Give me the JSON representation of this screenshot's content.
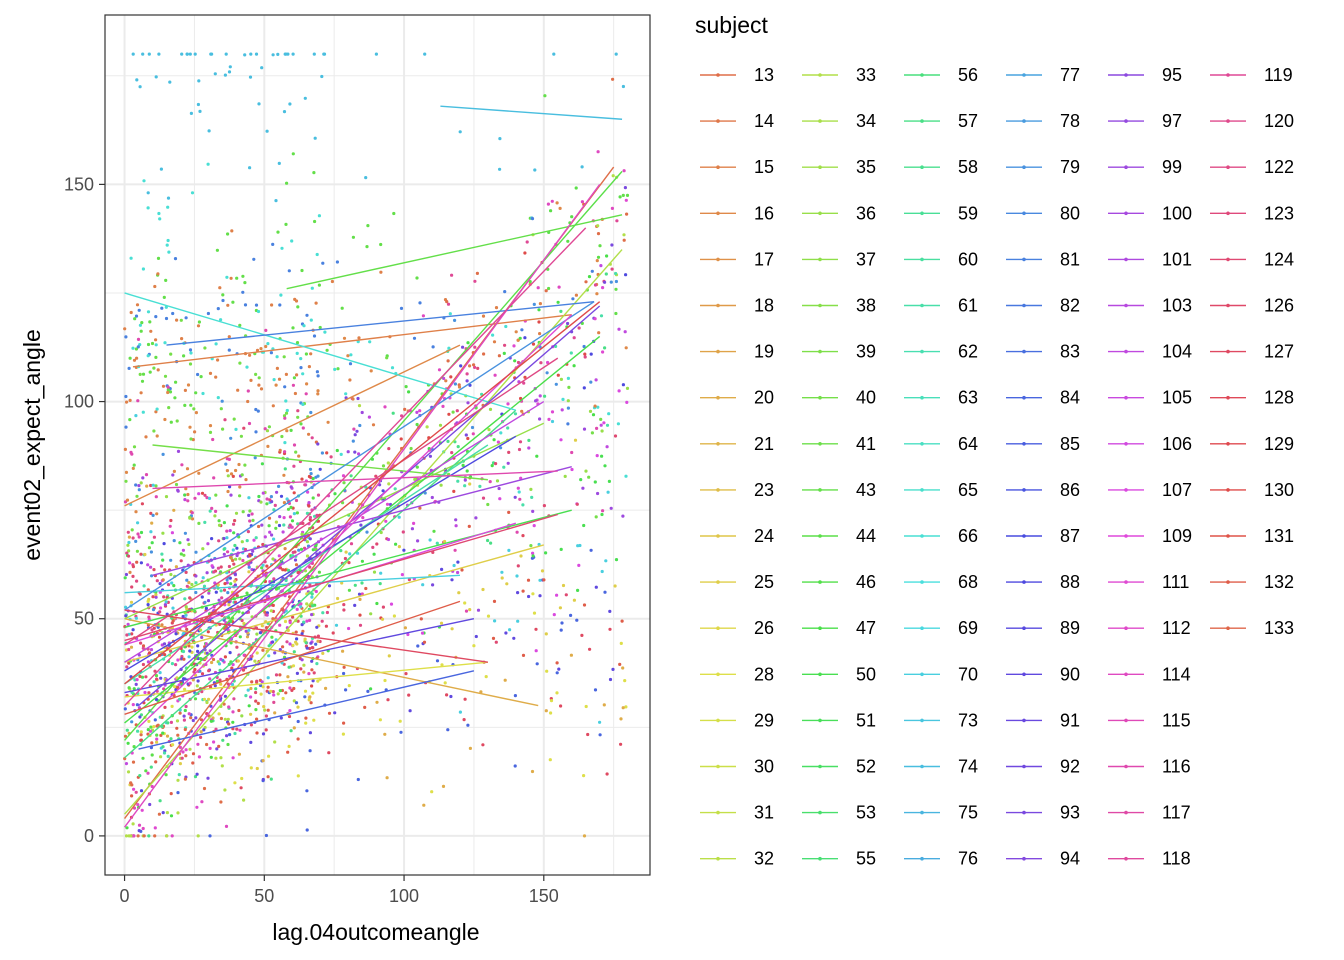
{
  "chart_data": {
    "type": "scatter",
    "title": "",
    "xlabel": "lag.04outcomeangle",
    "ylabel": "event02_expect_angle",
    "xlim": [
      -7,
      188
    ],
    "ylim": [
      -9,
      189
    ],
    "x_ticks": [
      0,
      50,
      100,
      150
    ],
    "y_ticks": [
      0,
      50,
      100,
      150
    ],
    "grid": true,
    "legend": {
      "title": "subject",
      "placement": "right",
      "entries": [
        "13",
        "14",
        "15",
        "16",
        "17",
        "18",
        "19",
        "20",
        "21",
        "23",
        "24",
        "25",
        "26",
        "28",
        "29",
        "30",
        "31",
        "32",
        "33",
        "34",
        "35",
        "36",
        "37",
        "38",
        "39",
        "40",
        "41",
        "43",
        "44",
        "46",
        "47",
        "50",
        "51",
        "52",
        "53",
        "55",
        "56",
        "57",
        "58",
        "59",
        "60",
        "61",
        "62",
        "63",
        "64",
        "65",
        "66",
        "68",
        "69",
        "70",
        "73",
        "74",
        "75",
        "76",
        "77",
        "78",
        "79",
        "80",
        "81",
        "82",
        "83",
        "84",
        "85",
        "86",
        "87",
        "88",
        "89",
        "90",
        "91",
        "92",
        "93",
        "94",
        "95",
        "97",
        "99",
        "100",
        "101",
        "103",
        "104",
        "105",
        "106",
        "107",
        "109",
        "111",
        "112",
        "114",
        "115",
        "116",
        "117",
        "118",
        "119",
        "120",
        "122",
        "123",
        "124",
        "126",
        "127",
        "128",
        "129",
        "130",
        "131",
        "132",
        "133"
      ]
    },
    "trend_lines": [
      {
        "subject": "13",
        "x": [
          0,
          175
        ],
        "y": [
          4,
          154
        ]
      },
      {
        "subject": "15",
        "x": [
          3,
          160
        ],
        "y": [
          108,
          120
        ]
      },
      {
        "subject": "16",
        "x": [
          0,
          120
        ],
        "y": [
          76,
          113
        ]
      },
      {
        "subject": "20",
        "x": [
          0,
          148
        ],
        "y": [
          50,
          30
        ]
      },
      {
        "subject": "25",
        "x": [
          0,
          150
        ],
        "y": [
          40,
          67
        ]
      },
      {
        "subject": "28",
        "x": [
          0,
          130
        ],
        "y": [
          32,
          40
        ]
      },
      {
        "subject": "33",
        "x": [
          0,
          178
        ],
        "y": [
          5,
          135
        ]
      },
      {
        "subject": "36",
        "x": [
          0,
          150
        ],
        "y": [
          50,
          95
        ]
      },
      {
        "subject": "40",
        "x": [
          10,
          130
        ],
        "y": [
          90,
          82
        ]
      },
      {
        "subject": "43",
        "x": [
          58,
          178
        ],
        "y": [
          126,
          143
        ]
      },
      {
        "subject": "44",
        "x": [
          0,
          178
        ],
        "y": [
          22,
          153
        ]
      },
      {
        "subject": "47",
        "x": [
          0,
          170
        ],
        "y": [
          26,
          115
        ]
      },
      {
        "subject": "50",
        "x": [
          0,
          160
        ],
        "y": [
          48,
          75
        ]
      },
      {
        "subject": "57",
        "x": [
          0,
          140
        ],
        "y": [
          18,
          98
        ]
      },
      {
        "subject": "61",
        "x": [
          0,
          130
        ],
        "y": [
          35,
          90
        ]
      },
      {
        "subject": "66",
        "x": [
          0,
          140
        ],
        "y": [
          125,
          98
        ]
      },
      {
        "subject": "70",
        "x": [
          0,
          120
        ],
        "y": [
          56,
          60
        ]
      },
      {
        "subject": "74",
        "x": [
          113,
          178
        ],
        "y": [
          168,
          165
        ]
      },
      {
        "subject": "79",
        "x": [
          0,
          168
        ],
        "y": [
          52,
          123
        ]
      },
      {
        "subject": "81",
        "x": [
          15,
          168
        ],
        "y": [
          113,
          123
        ]
      },
      {
        "subject": "84",
        "x": [
          5,
          125
        ],
        "y": [
          20,
          38
        ]
      },
      {
        "subject": "88",
        "x": [
          0,
          140
        ],
        "y": [
          38,
          92
        ]
      },
      {
        "subject": "90",
        "x": [
          0,
          125
        ],
        "y": [
          33,
          50
        ]
      },
      {
        "subject": "93",
        "x": [
          5,
          170
        ],
        "y": [
          30,
          122
        ]
      },
      {
        "subject": "99",
        "x": [
          10,
          160
        ],
        "y": [
          60,
          85
        ]
      },
      {
        "subject": "104",
        "x": [
          0,
          150
        ],
        "y": [
          40,
          100
        ]
      },
      {
        "subject": "107",
        "x": [
          0,
          140
        ],
        "y": [
          44,
          72
        ]
      },
      {
        "subject": "111",
        "x": [
          5,
          160
        ],
        "y": [
          25,
          120
        ]
      },
      {
        "subject": "114",
        "x": [
          0,
          170
        ],
        "y": [
          2,
          150
        ]
      },
      {
        "subject": "116",
        "x": [
          10,
          155
        ],
        "y": [
          80,
          84
        ]
      },
      {
        "subject": "119",
        "x": [
          0,
          165
        ],
        "y": [
          30,
          140
        ]
      },
      {
        "subject": "122",
        "x": [
          0,
          155
        ],
        "y": [
          44,
          110
        ]
      },
      {
        "subject": "124",
        "x": [
          0,
          155
        ],
        "y": [
          45,
          74
        ]
      },
      {
        "subject": "127",
        "x": [
          0,
          130
        ],
        "y": [
          52,
          40
        ]
      },
      {
        "subject": "130",
        "x": [
          0,
          170
        ],
        "y": [
          35,
          123
        ]
      },
      {
        "subject": "132",
        "x": [
          0,
          120
        ],
        "y": [
          28,
          54
        ]
      }
    ]
  }
}
